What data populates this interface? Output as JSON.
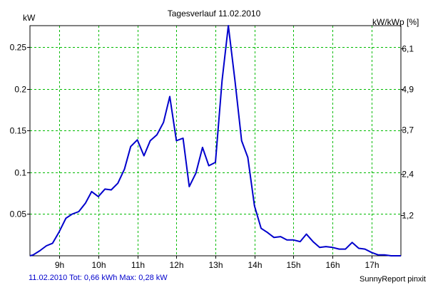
{
  "chart_data": {
    "type": "line",
    "title": "Tagesverlauf 11.02.2010",
    "ylabel": "kW",
    "y2label": "kW/kWp [%]",
    "x_tick_labels": [
      "9h",
      "10h",
      "11h",
      "12h",
      "13h",
      "14h",
      "15h",
      "16h",
      "17h"
    ],
    "x_ticks": [
      9,
      10,
      11,
      12,
      13,
      14,
      15,
      16,
      17
    ],
    "xlim": [
      8.25,
      17.75
    ],
    "y_ticks": [
      0.05,
      0.1,
      0.15,
      0.2,
      0.25
    ],
    "y_tick_labels": [
      "0.05",
      "0.1",
      "0.15",
      "0.2",
      "0.25"
    ],
    "ylim": [
      0,
      0.276
    ],
    "y2_ticks": [
      1.2,
      2.4,
      3.7,
      4.9,
      6.1
    ],
    "y2_tick_labels": [
      "1,2",
      "2,4",
      "3,7",
      "4,9",
      "6,1"
    ],
    "y2lim": [
      0,
      6.76
    ],
    "grid": true,
    "colors": {
      "line": "#0000cc",
      "grid": "#00bb00",
      "footer_left": "#0000cc"
    },
    "series": [
      {
        "x": [
          8.25,
          8.33,
          8.5,
          8.67,
          8.83,
          9.0,
          9.17,
          9.33,
          9.5,
          9.67,
          9.83,
          10.0,
          10.17,
          10.33,
          10.5,
          10.67,
          10.83,
          11.0,
          11.17,
          11.33,
          11.5,
          11.67,
          11.83,
          12.0,
          12.17,
          12.33,
          12.5,
          12.67,
          12.83,
          13.0,
          13.17,
          13.33,
          13.5,
          13.67,
          13.83,
          14.0,
          14.17,
          14.33,
          14.5,
          14.67,
          14.83,
          15.0,
          15.17,
          15.33,
          15.5,
          15.67,
          15.83,
          16.0,
          16.17,
          16.33,
          16.5,
          16.67,
          16.83,
          17.0,
          17.17,
          17.33,
          17.5,
          17.75
        ],
        "values": [
          0.0,
          0.001,
          0.006,
          0.012,
          0.015,
          0.029,
          0.045,
          0.05,
          0.053,
          0.063,
          0.077,
          0.071,
          0.08,
          0.079,
          0.087,
          0.104,
          0.131,
          0.139,
          0.12,
          0.138,
          0.145,
          0.16,
          0.191,
          0.138,
          0.141,
          0.083,
          0.099,
          0.13,
          0.108,
          0.112,
          0.21,
          0.276,
          0.21,
          0.138,
          0.118,
          0.06,
          0.033,
          0.028,
          0.022,
          0.023,
          0.019,
          0.019,
          0.017,
          0.026,
          0.017,
          0.01,
          0.011,
          0.01,
          0.008,
          0.008,
          0.016,
          0.009,
          0.008,
          0.004,
          0.001,
          0.001,
          0.0,
          0.0
        ]
      }
    ]
  },
  "footer": {
    "left": "11.02.2010 Tot: 0,66 kWh Max: 0,28 kW",
    "right": "SunnyReport pinxit"
  }
}
